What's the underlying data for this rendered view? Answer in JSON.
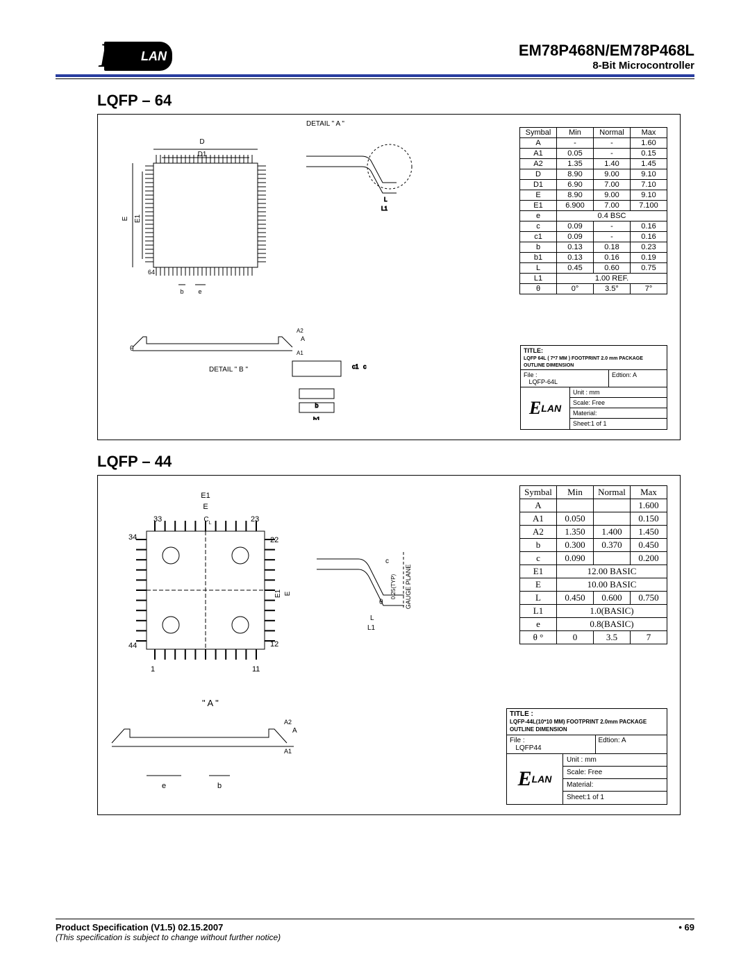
{
  "header": {
    "logo_text": "LAN",
    "part": "EM78P468N/EM78P468L",
    "subtitle": "8-Bit Microcontroller"
  },
  "sections": {
    "s64": "LQFP – 64",
    "s44": "LQFP – 44"
  },
  "labels64": {
    "detailA": "DETAIL \" A \"",
    "detailB": "DETAIL \" B \"",
    "D": "D",
    "D1": "D1",
    "E": "E",
    "E1": "E1",
    "pin64": "64",
    "b": "b",
    "e": "e",
    "A": "A",
    "A1": "A1",
    "A2": "A2",
    "L": "L",
    "L1": "L1",
    "b1": "b1",
    "c": "c",
    "c1": "c1",
    "theta": "θ"
  },
  "labels44": {
    "E1": "E1",
    "E": "E",
    "p33": "33",
    "p23": "23",
    "p34": "34",
    "p22": "22",
    "p44": "44",
    "p12": "12",
    "p1": "1",
    "p11": "11",
    "A": "\" A \"",
    "e": "e",
    "b": "b",
    "A1": "A1",
    "A2": "A2",
    "Acap": "A",
    "c": "c",
    "L": "L",
    "L1": "L1",
    "theta": "θ",
    "gauge": "GAUGE PLANE",
    "typ": "0.25(TYP)"
  },
  "table64": {
    "headers": [
      "Symbal",
      "Min",
      "Normal",
      "Max"
    ],
    "rows": [
      [
        "A",
        "-",
        "-",
        "1.60"
      ],
      [
        "A1",
        "0.05",
        "-",
        "0.15"
      ],
      [
        "A2",
        "1.35",
        "1.40",
        "1.45"
      ],
      [
        "D",
        "8.90",
        "9.00",
        "9.10"
      ],
      [
        "D1",
        "6.90",
        "7.00",
        "7.10"
      ],
      [
        "E",
        "8.90",
        "9.00",
        "9.10"
      ],
      [
        "E1",
        "6.900",
        "7.00",
        "7.100"
      ],
      [
        "e",
        {
          "span": 3,
          "v": "0.4 BSC"
        }
      ],
      [
        "c",
        "0.09",
        "-",
        "0.16"
      ],
      [
        "c1",
        "0.09",
        "-",
        "0.16"
      ],
      [
        "b",
        "0.13",
        "0.18",
        "0.23"
      ],
      [
        "b1",
        "0.13",
        "0.16",
        "0.19"
      ],
      [
        "L",
        "0.45",
        "0.60",
        "0.75"
      ],
      [
        "L1",
        {
          "span": 3,
          "v": "1.00 REF."
        }
      ],
      [
        "θ",
        "0°",
        "3.5°",
        "7°"
      ]
    ]
  },
  "table44": {
    "headers": [
      "Symbal",
      "Min",
      "Normal",
      "Max"
    ],
    "rows": [
      [
        "A",
        "",
        "",
        "1.600"
      ],
      [
        "A1",
        "0.050",
        "",
        "0.150"
      ],
      [
        "A2",
        "1.350",
        "1.400",
        "1.450"
      ],
      [
        "b",
        "0.300",
        "0.370",
        "0.450"
      ],
      [
        "c",
        "0.090",
        "",
        "0.200"
      ],
      [
        "E1",
        {
          "span": 3,
          "v": "12.00 BASIC"
        }
      ],
      [
        "E",
        {
          "span": 3,
          "v": "10.00 BASIC"
        }
      ],
      [
        "L",
        "0.450",
        "0.600",
        "0.750"
      ],
      [
        "L1",
        {
          "span": 3,
          "v": "1.0(BASIC)"
        }
      ],
      [
        "e",
        {
          "span": 3,
          "v": "0.8(BASIC)"
        }
      ],
      [
        "θ °",
        "0",
        "3.5",
        "7"
      ]
    ]
  },
  "titleblock64": {
    "title_label": "TITLE:",
    "title": "LQFP 64L ( 7*7 MM ) FOOTPRINT 2.0 mm PACKAGE OUTLINE DIMENSION",
    "file_label": "File :",
    "file": "LQFP-64L",
    "edition": "Edtion:  A",
    "unit": "Unit : mm",
    "scale": "Scale: Free",
    "material": "Material:",
    "sheet": "Sheet:1 of 1"
  },
  "titleblock44": {
    "title_label": "TITLE :",
    "title": "LQFP-44L(10*10 MM) FOOTPRINT 2.0mm PACKAGE OUTLINE DIMENSION",
    "file_label": "File :",
    "file": "LQFP44",
    "edition": "Edtion:  A",
    "unit": "Unit : mm",
    "scale": "Scale: Free",
    "material": "Material:",
    "sheet": "Sheet:1 of 1"
  },
  "footer": {
    "left": "Product Specification (V1.5) 02.15.2007",
    "right": "• 69",
    "note": "(This specification is subject to change without further notice)"
  }
}
